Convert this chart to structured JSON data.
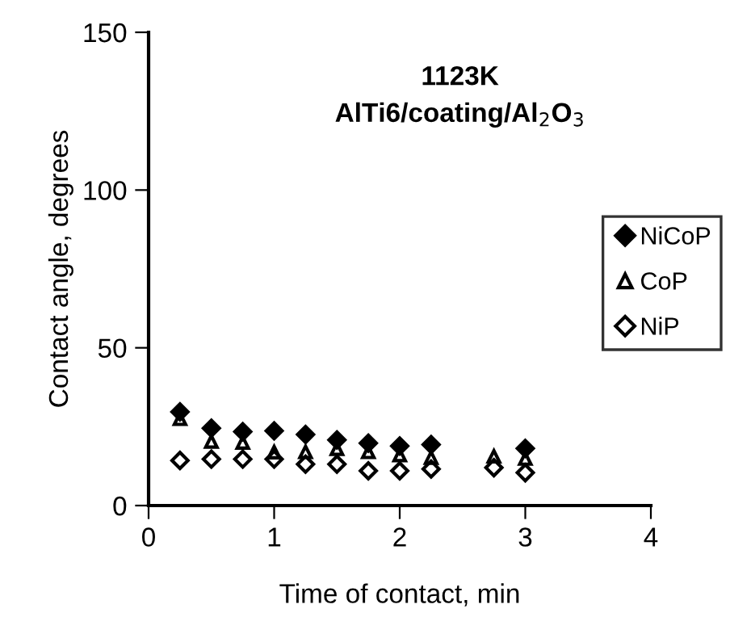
{
  "chart_data": {
    "type": "scatter",
    "title": "1123K\nAlTi6/coating/Al$_{2}$O$_{3}$",
    "xlabel": "Time of contact, min",
    "ylabel": "Contact angle, degrees",
    "x": [
      0.25,
      0.5,
      0.75,
      1,
      1.25,
      1.5,
      1.75,
      2,
      2.25,
      2.75,
      3
    ],
    "series": [
      {
        "name": "NiCoP",
        "color": "#000000",
        "marker": "diamond",
        "values": [
          29.7,
          24.5,
          23.4,
          23.7,
          22.5,
          20.8,
          19.8,
          18.9,
          19.3,
          null,
          18.1
        ]
      },
      {
        "name": "CoP",
        "color": "#000000",
        "marker": "triangle",
        "values": [
          27.5,
          20.3,
          20,
          16.9,
          17,
          18,
          17,
          16,
          15.2,
          15.6,
          14.9
        ]
      },
      {
        "name": "NiP",
        "color": "#000000",
        "marker": "diamond",
        "values": [
          14.3,
          14.7,
          14.7,
          14.7,
          13.1,
          13.1,
          11,
          11,
          11.6,
          12,
          10.4
        ]
      }
    ],
    "xlim": [
      0,
      4
    ],
    "xticks": [
      0,
      1,
      2,
      3,
      4
    ],
    "ylim": [
      0,
      150
    ],
    "yticks": [
      0,
      50,
      100,
      150
    ],
    "grid": false,
    "legend": "right"
  }
}
